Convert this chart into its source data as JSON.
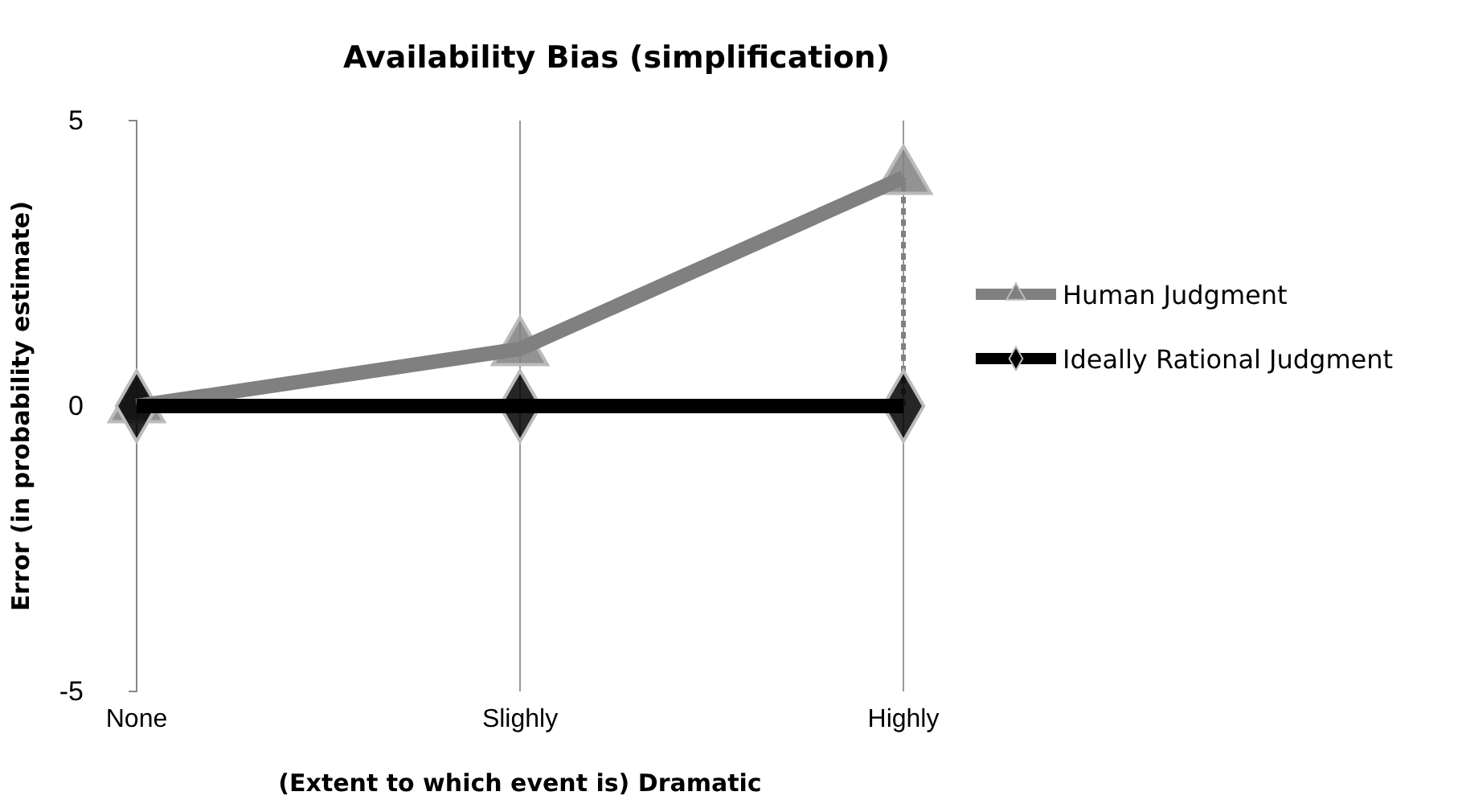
{
  "chart_data": {
    "type": "line",
    "title": "Availability Bias (simplification)",
    "xlabel": "(Extent to which event is) Dramatic",
    "ylabel": "Error  (in probability estimate)",
    "categories": [
      "None",
      "Slighly",
      "Highly"
    ],
    "series": [
      {
        "name": "Human Judgment",
        "color": "#808080",
        "values": [
          0,
          1,
          4
        ],
        "marker": "triangle"
      },
      {
        "name": "Ideally Rational Judgment",
        "color": "#000000",
        "values": [
          0,
          0,
          0
        ],
        "marker": "diamond",
        "errors": [
          null,
          null,
          [
            0,
            4
          ]
        ]
      }
    ],
    "ylim": [
      -5,
      5
    ],
    "yticks": [
      -5,
      0,
      5
    ],
    "grid": "x",
    "legend": "right"
  }
}
